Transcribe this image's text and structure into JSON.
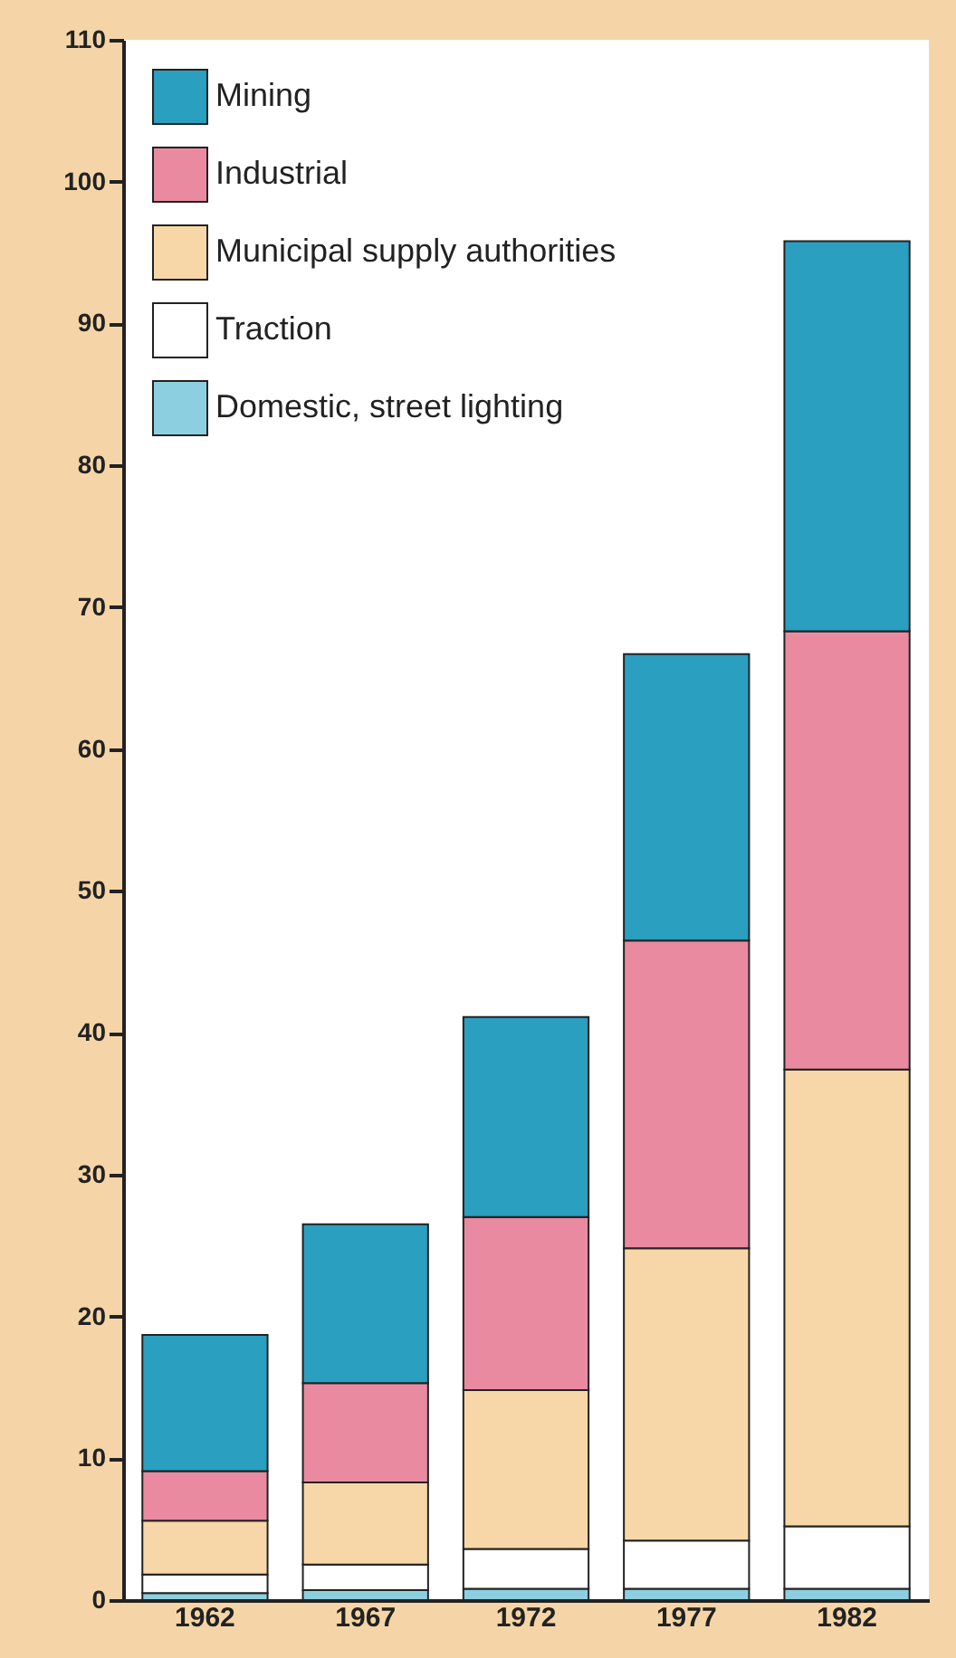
{
  "chart_data": {
    "type": "bar",
    "stacked": true,
    "categories": [
      "1962",
      "1967",
      "1972",
      "1977",
      "1982"
    ],
    "series": [
      {
        "name": "Domestic, street lighting",
        "color": "#8ccfe0",
        "values": [
          0.5,
          0.7,
          0.8,
          0.8,
          0.8
        ]
      },
      {
        "name": "Traction",
        "color": "#ffffff",
        "values": [
          1.3,
          1.8,
          2.8,
          3.4,
          4.4
        ]
      },
      {
        "name": "Municipal supply authorities",
        "color": "#f7d7a8",
        "values": [
          3.8,
          5.8,
          11.2,
          20.6,
          32.2
        ]
      },
      {
        "name": "Industrial",
        "color": "#e98aa0",
        "values": [
          3.5,
          7.0,
          12.2,
          21.7,
          30.9
        ]
      },
      {
        "name": "Mining",
        "color": "#2a9fc0",
        "values": [
          9.6,
          11.2,
          14.1,
          20.2,
          27.5
        ]
      }
    ],
    "ylim": [
      0,
      110
    ],
    "yticks": [
      0,
      10,
      20,
      30,
      40,
      50,
      60,
      70,
      80,
      90,
      100,
      110
    ],
    "grid": false,
    "legend": "top left"
  }
}
